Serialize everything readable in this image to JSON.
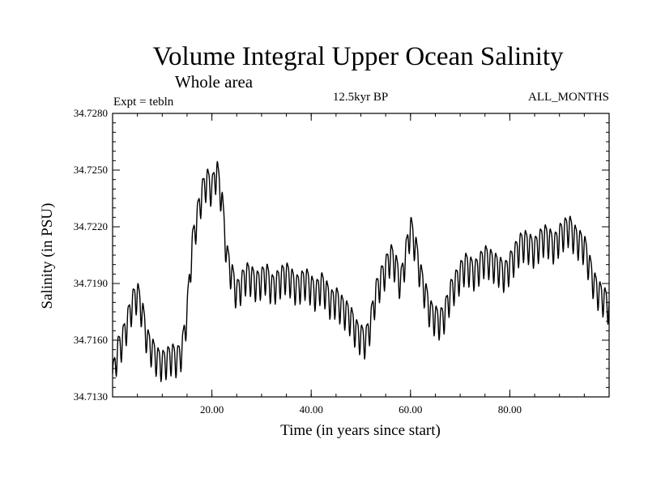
{
  "chart_data": {
    "type": "line",
    "title": "Volume Integral Upper Ocean Salinity",
    "subtitle": "Whole area",
    "experiment": "Expt = tebln",
    "period": "12.5kyr BP",
    "months": "ALL_MONTHS",
    "xlabel": "Time (in years since start)",
    "ylabel": "Salinity (in PSU)",
    "xlim": [
      0.0,
      100.0
    ],
    "ylim": [
      34.713,
      34.728
    ],
    "x_ticks": [
      20,
      40,
      60,
      80
    ],
    "x_tick_labels": [
      "20.00",
      "40.00",
      "60.00",
      "80.00"
    ],
    "y_ticks": [
      34.713,
      34.716,
      34.719,
      34.722,
      34.725,
      34.728
    ],
    "y_tick_labels": [
      "34.7130",
      "34.7160",
      "34.7190",
      "34.7220",
      "34.7250",
      "34.7280"
    ],
    "grid": false,
    "series": [
      {
        "name": "Salinity",
        "x": [
          0,
          1,
          2,
          3,
          4,
          5,
          6,
          7,
          8,
          9,
          10,
          11,
          12,
          13,
          14,
          15,
          16,
          17,
          18,
          19,
          20,
          21,
          22,
          23,
          24,
          25,
          26,
          27,
          28,
          29,
          30,
          31,
          32,
          33,
          34,
          35,
          36,
          37,
          38,
          39,
          40,
          41,
          42,
          43,
          44,
          45,
          46,
          47,
          48,
          49,
          50,
          51,
          52,
          53,
          54,
          55,
          56,
          57,
          58,
          59,
          60,
          61,
          62,
          63,
          64,
          65,
          66,
          67,
          68,
          69,
          70,
          71,
          72,
          73,
          74,
          75,
          76,
          77,
          78,
          79,
          80,
          81,
          82,
          83,
          84,
          85,
          86,
          87,
          88,
          89,
          90,
          91,
          92,
          93,
          94,
          95,
          96,
          97,
          98,
          99,
          100
        ],
        "values": [
          34.714,
          34.7155,
          34.716,
          34.717,
          34.718,
          34.7185,
          34.7175,
          34.716,
          34.7155,
          34.715,
          34.7148,
          34.715,
          34.7152,
          34.715,
          34.7155,
          34.7175,
          34.721,
          34.7225,
          34.7238,
          34.7245,
          34.724,
          34.725,
          34.7235,
          34.7205,
          34.7195,
          34.7185,
          34.719,
          34.7195,
          34.7193,
          34.719,
          34.7192,
          34.7195,
          34.7188,
          34.719,
          34.7193,
          34.7195,
          34.7192,
          34.7188,
          34.719,
          34.7192,
          34.7188,
          34.7185,
          34.719,
          34.7186,
          34.718,
          34.7182,
          34.7178,
          34.7175,
          34.7172,
          34.7165,
          34.7162,
          34.716,
          34.717,
          34.7185,
          34.7192,
          34.7198,
          34.7205,
          34.72,
          34.719,
          34.7205,
          34.722,
          34.721,
          34.7195,
          34.7185,
          34.7175,
          34.7172,
          34.717,
          34.7175,
          34.7185,
          34.719,
          34.7195,
          34.72,
          34.7198,
          34.7196,
          34.72,
          34.7204,
          34.7202,
          34.72,
          34.7198,
          34.7195,
          34.72,
          34.7205,
          34.721,
          34.7212,
          34.721,
          34.7208,
          34.7212,
          34.7215,
          34.7213,
          34.721,
          34.7215,
          34.7218,
          34.722,
          34.7215,
          34.7212,
          34.721,
          34.72,
          34.719,
          34.7185,
          34.7182,
          34.7178
        ]
      }
    ]
  }
}
